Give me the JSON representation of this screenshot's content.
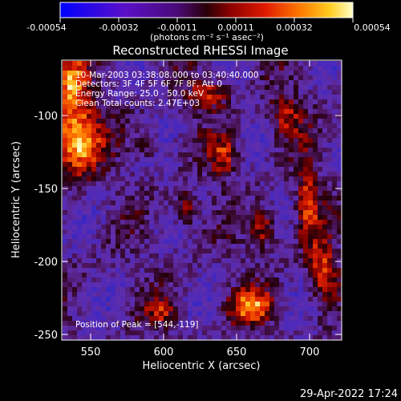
{
  "colorbar": {
    "tick_labels": [
      "-0.00054",
      "-0.00032",
      "-0.00011",
      "0.00011",
      "0.00032",
      "0.00054"
    ],
    "units": "(photons cm⁻² s⁻¹ asec⁻²)"
  },
  "title": "Reconstructed RHESSI Image",
  "info": {
    "line1": "10-Mar-2003 03:38:08.000 to 03:40:40.000",
    "line2": "Detectors: 3F 4F 5F 6F 7F 8F, Att 0",
    "line3": "Energy Range: 25.0 - 50.0 keV",
    "line4": "Clean    Total counts: 2.47E+03",
    "peak": "Position of Peak = [544,-119]"
  },
  "axes": {
    "xlabel": "Heliocentric X (arcsec)",
    "ylabel": "Heliocentric Y (arcsec)",
    "x_ticks": [
      "550",
      "600",
      "650",
      "700"
    ],
    "y_ticks": [
      "-100",
      "-150",
      "-200",
      "-250"
    ]
  },
  "timestamp": "29-Apr-2022 17:24",
  "colors": {
    "background": "#000000",
    "text": "#ffffff",
    "frame": "#ffffff"
  }
}
